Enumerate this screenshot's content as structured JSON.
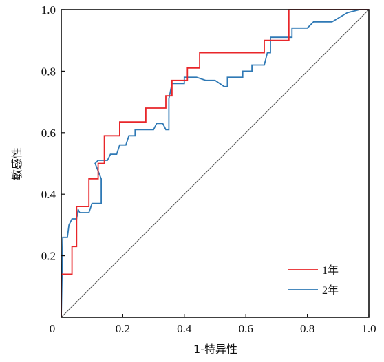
{
  "chart_data": {
    "type": "line",
    "xlabel": "1-特异性",
    "ylabel": "敏感性",
    "xlim": [
      0,
      1.0
    ],
    "ylim": [
      0,
      1.0
    ],
    "x_ticks": [
      "0",
      "0.2",
      "0.4",
      "0.6",
      "0.8",
      "1.0"
    ],
    "y_ticks": [
      "0.2",
      "0.4",
      "0.6",
      "0.8",
      "1.0"
    ],
    "grid": false,
    "legend_position": "bottom-right",
    "reference_line": {
      "from": [
        0,
        0
      ],
      "to": [
        1,
        1
      ],
      "color": "#555555"
    },
    "series": [
      {
        "name": "1年",
        "color": "#e8262a",
        "points": [
          [
            0,
            0
          ],
          [
            0,
            0.14
          ],
          [
            0.035,
            0.14
          ],
          [
            0.035,
            0.23
          ],
          [
            0.05,
            0.23
          ],
          [
            0.05,
            0.36
          ],
          [
            0.09,
            0.36
          ],
          [
            0.09,
            0.45
          ],
          [
            0.12,
            0.45
          ],
          [
            0.12,
            0.5
          ],
          [
            0.14,
            0.5
          ],
          [
            0.14,
            0.59
          ],
          [
            0.19,
            0.59
          ],
          [
            0.19,
            0.635
          ],
          [
            0.275,
            0.635
          ],
          [
            0.275,
            0.68
          ],
          [
            0.34,
            0.68
          ],
          [
            0.34,
            0.72
          ],
          [
            0.36,
            0.72
          ],
          [
            0.36,
            0.77
          ],
          [
            0.41,
            0.77
          ],
          [
            0.41,
            0.81
          ],
          [
            0.45,
            0.81
          ],
          [
            0.45,
            0.86
          ],
          [
            0.66,
            0.86
          ],
          [
            0.66,
            0.9
          ],
          [
            0.74,
            0.9
          ],
          [
            0.74,
            1.0
          ],
          [
            1.0,
            1.0
          ]
        ]
      },
      {
        "name": "2年",
        "color": "#2f79b5",
        "points": [
          [
            0,
            0
          ],
          [
            0.005,
            0.26
          ],
          [
            0.02,
            0.26
          ],
          [
            0.025,
            0.3
          ],
          [
            0.035,
            0.32
          ],
          [
            0.05,
            0.32
          ],
          [
            0.055,
            0.35
          ],
          [
            0.06,
            0.34
          ],
          [
            0.09,
            0.34
          ],
          [
            0.1,
            0.37
          ],
          [
            0.13,
            0.37
          ],
          [
            0.13,
            0.45
          ],
          [
            0.11,
            0.5
          ],
          [
            0.12,
            0.51
          ],
          [
            0.15,
            0.51
          ],
          [
            0.16,
            0.53
          ],
          [
            0.18,
            0.53
          ],
          [
            0.19,
            0.56
          ],
          [
            0.21,
            0.56
          ],
          [
            0.22,
            0.59
          ],
          [
            0.24,
            0.59
          ],
          [
            0.24,
            0.61
          ],
          [
            0.3,
            0.61
          ],
          [
            0.31,
            0.63
          ],
          [
            0.33,
            0.63
          ],
          [
            0.34,
            0.61
          ],
          [
            0.35,
            0.61
          ],
          [
            0.35,
            0.71
          ],
          [
            0.36,
            0.76
          ],
          [
            0.4,
            0.76
          ],
          [
            0.4,
            0.78
          ],
          [
            0.44,
            0.78
          ],
          [
            0.47,
            0.77
          ],
          [
            0.5,
            0.77
          ],
          [
            0.53,
            0.75
          ],
          [
            0.54,
            0.75
          ],
          [
            0.54,
            0.78
          ],
          [
            0.59,
            0.78
          ],
          [
            0.59,
            0.8
          ],
          [
            0.62,
            0.8
          ],
          [
            0.62,
            0.82
          ],
          [
            0.66,
            0.82
          ],
          [
            0.67,
            0.86
          ],
          [
            0.68,
            0.86
          ],
          [
            0.68,
            0.91
          ],
          [
            0.75,
            0.91
          ],
          [
            0.75,
            0.94
          ],
          [
            0.8,
            0.94
          ],
          [
            0.82,
            0.96
          ],
          [
            0.88,
            0.96
          ],
          [
            0.93,
            0.99
          ],
          [
            0.97,
            1.0
          ],
          [
            1.0,
            1.0
          ]
        ]
      }
    ]
  }
}
